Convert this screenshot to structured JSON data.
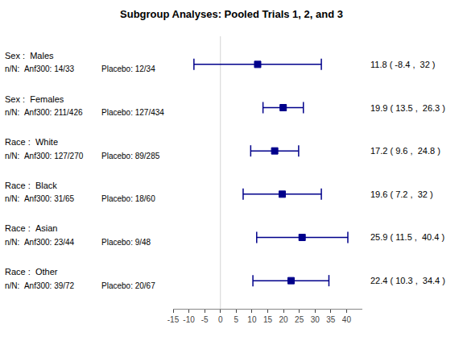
{
  "chart_data": {
    "type": "forest",
    "title": "Subgroup Analyses: Pooled Trials 1, 2, and 3",
    "categories": [
      "Sex :  Males",
      "Sex :  Females",
      "Race :  White",
      "Race :  Black",
      "Race :  Asian",
      "Race :  Other"
    ],
    "labels_treatment": [
      "n/N:  Anf300: 14/33",
      "n/N:  Anf300: 211/426",
      "n/N:  Anf300: 127/270",
      "n/N:  Anf300: 31/65",
      "n/N:  Anf300: 23/44",
      "n/N:  Anf300: 39/72"
    ],
    "labels_placebo": [
      "Placebo: 12/34",
      "Placebo: 127/434",
      "Placebo: 89/285",
      "Placebo: 18/60",
      "Placebo: 9/48",
      "Placebo: 20/67"
    ],
    "values": [
      11.8,
      19.9,
      17.2,
      19.6,
      25.9,
      22.4
    ],
    "ci_low": [
      -8.4,
      13.5,
      9.6,
      7.2,
      11.5,
      10.3
    ],
    "ci_high": [
      32,
      26.3,
      24.8,
      32,
      40.4,
      34.4
    ],
    "annotations": [
      "11.8 ( -8.4 ,  32 )",
      "19.9 ( 13.5 ,  26.3 )",
      "17.2 ( 9.6 ,  24.8 )",
      "19.6 ( 7.2 ,  32 )",
      "25.9 ( 11.5 ,  40.4 )",
      "22.4 ( 10.3 ,  34.4 )"
    ],
    "reference_x": 0,
    "xlim": [
      -15,
      45
    ],
    "xticks": [
      -15,
      -10,
      -5,
      0,
      5,
      10,
      15,
      20,
      25,
      30,
      35,
      40
    ],
    "color": "#00008B",
    "marker": "square",
    "grid": false,
    "tick_labels": "x"
  }
}
